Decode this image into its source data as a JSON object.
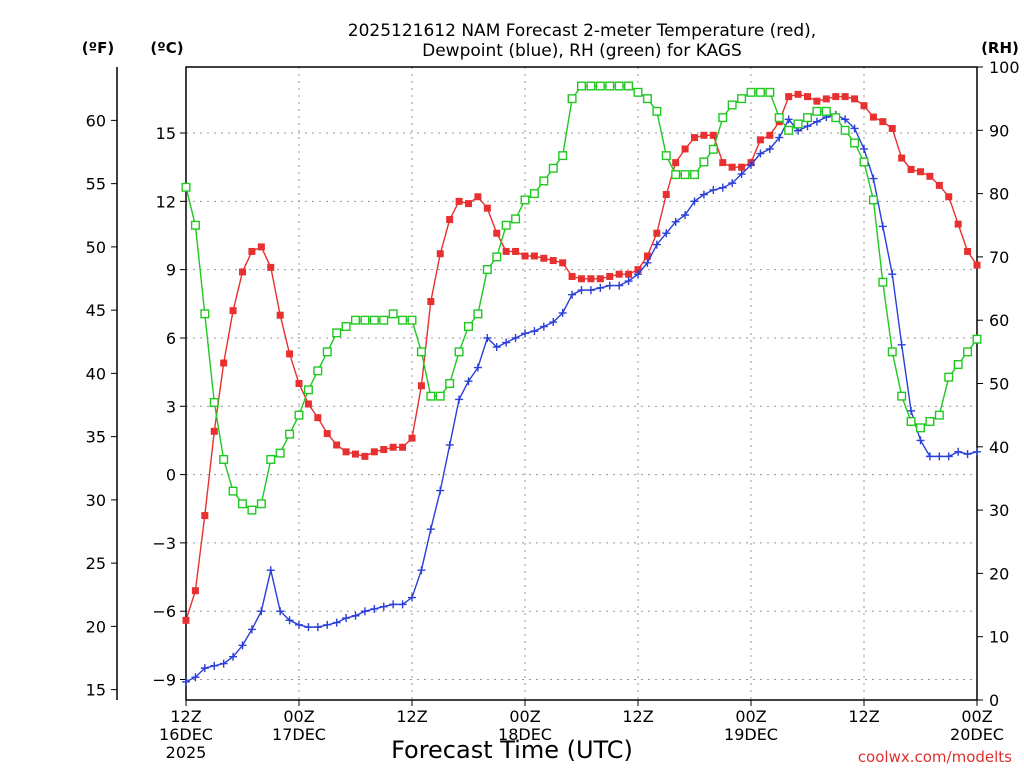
{
  "chart_data": {
    "type": "line",
    "title_line1": "2025121612 NAM Forecast 2-meter Temperature (red),",
    "title_line2": "Dewpoint (blue), RH (green) for KAGS",
    "xlabel": "Forecast Time (UTC)",
    "credit": "coolwx.com/modelts",
    "units": {
      "left_outer": "(ºF)",
      "left_inner": "(ºC)",
      "right": "(RH)"
    },
    "x_range_hours": [
      0,
      84
    ],
    "x_ticks": [
      {
        "h": 0,
        "line1": "12Z",
        "line2": "16DEC",
        "line3": "2025"
      },
      {
        "h": 12,
        "line1": "00Z",
        "line2": "17DEC",
        "line3": ""
      },
      {
        "h": 24,
        "line1": "12Z",
        "line2": "",
        "line3": ""
      },
      {
        "h": 36,
        "line1": "00Z",
        "line2": "18DEC",
        "line3": ""
      },
      {
        "h": 48,
        "line1": "12Z",
        "line2": "",
        "line3": ""
      },
      {
        "h": 60,
        "line1": "00Z",
        "line2": "19DEC",
        "line3": ""
      },
      {
        "h": 72,
        "line1": "12Z",
        "line2": "",
        "line3": ""
      },
      {
        "h": 84,
        "line1": "00Z",
        "line2": "20DEC",
        "line3": ""
      }
    ],
    "y_celsius": {
      "range": [
        -9.9,
        17.9
      ],
      "ticks": [
        "−9",
        "−6",
        "−3",
        "0",
        "3",
        "6",
        "9",
        "12",
        "15"
      ]
    },
    "y_fahrenheit": {
      "ticks": [
        "15",
        "20",
        "25",
        "30",
        "35",
        "40",
        "45",
        "50",
        "55",
        "60"
      ]
    },
    "y_rh": {
      "range": [
        0,
        100
      ],
      "ticks": [
        "0",
        "10",
        "20",
        "30",
        "40",
        "50",
        "60",
        "70",
        "80",
        "90",
        "100"
      ]
    },
    "grid": true,
    "series": [
      {
        "name": "Temperature (red)",
        "unit": "C",
        "color": "#e83030",
        "marker": "filled-square",
        "values": [
          -6.4,
          -5.1,
          -1.8,
          1.9,
          4.9,
          7.2,
          8.9,
          9.8,
          10.0,
          9.1,
          7.0,
          5.3,
          4.0,
          3.1,
          2.5,
          1.8,
          1.3,
          1.0,
          0.9,
          0.8,
          1.0,
          1.1,
          1.2,
          1.2,
          1.6,
          3.9,
          7.6,
          9.7,
          11.2,
          12.0,
          11.9,
          12.2,
          11.7,
          10.6,
          9.8,
          9.8,
          9.6,
          9.6,
          9.5,
          9.4,
          9.3,
          8.7,
          8.6,
          8.6,
          8.6,
          8.7,
          8.8,
          8.8,
          9.0,
          9.6,
          10.6,
          12.3,
          13.7,
          14.3,
          14.8,
          14.9,
          14.9,
          13.7,
          13.5,
          13.5,
          13.7,
          14.7,
          14.9,
          15.5,
          16.6,
          16.7,
          16.6,
          16.4,
          16.5,
          16.6,
          16.6,
          16.5,
          16.2,
          15.7,
          15.5,
          15.2,
          13.9,
          13.4,
          13.3,
          13.1,
          12.7,
          12.2,
          11.0,
          9.8,
          9.2
        ]
      },
      {
        "name": "Dewpoint (blue)",
        "unit": "C",
        "color": "#2a3ed8",
        "marker": "plus",
        "values": [
          -9.1,
          -8.9,
          -8.5,
          -8.4,
          -8.3,
          -8.0,
          -7.5,
          -6.8,
          -6.0,
          -4.2,
          -6.0,
          -6.4,
          -6.6,
          -6.7,
          -6.7,
          -6.6,
          -6.5,
          -6.3,
          -6.2,
          -6.0,
          -5.9,
          -5.8,
          -5.7,
          -5.7,
          -5.4,
          -4.2,
          -2.4,
          -0.7,
          1.3,
          3.3,
          4.1,
          4.7,
          6.0,
          5.6,
          5.8,
          6.0,
          6.2,
          6.3,
          6.5,
          6.7,
          7.1,
          7.9,
          8.1,
          8.1,
          8.2,
          8.3,
          8.3,
          8.5,
          8.8,
          9.3,
          10.1,
          10.6,
          11.1,
          11.4,
          12.0,
          12.3,
          12.5,
          12.6,
          12.8,
          13.2,
          13.6,
          14.1,
          14.3,
          14.8,
          15.6,
          15.1,
          15.3,
          15.5,
          15.7,
          15.8,
          15.6,
          15.2,
          14.3,
          13.0,
          10.9,
          8.8,
          5.7,
          2.8,
          1.5,
          0.8,
          0.8,
          0.8,
          1.0,
          0.9,
          1.0
        ]
      },
      {
        "name": "RH (green)",
        "unit": "%",
        "color": "#20c820",
        "marker": "open-square",
        "values": [
          81,
          75,
          61,
          47,
          38,
          33,
          31,
          30,
          31,
          38,
          39,
          42,
          45,
          49,
          52,
          55,
          58,
          59,
          60,
          60,
          60,
          60,
          61,
          60,
          60,
          55,
          48,
          48,
          50,
          55,
          59,
          61,
          68,
          70,
          75,
          76,
          79,
          80,
          82,
          84,
          86,
          95,
          97,
          97,
          97,
          97,
          97,
          97,
          96,
          95,
          93,
          86,
          83,
          83,
          83,
          85,
          87,
          92,
          94,
          95,
          96,
          96,
          96,
          92,
          90,
          91,
          92,
          93,
          93,
          92,
          90,
          88,
          85,
          79,
          66,
          55,
          48,
          44,
          43,
          44,
          45,
          51,
          53,
          55,
          57
        ]
      }
    ]
  }
}
